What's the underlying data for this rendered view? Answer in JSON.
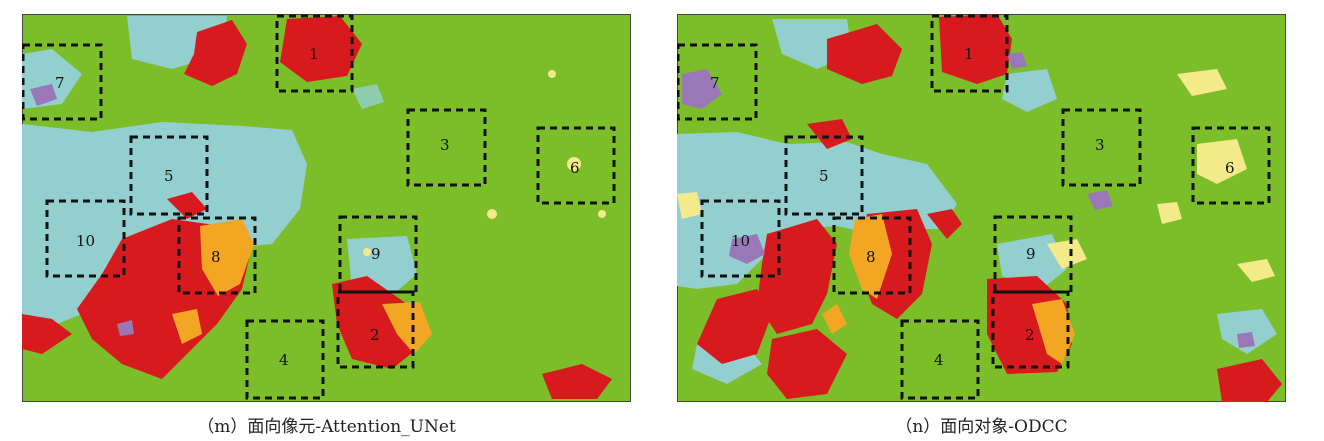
{
  "colors": {
    "green": "#7cbd2a",
    "cyan": "#94cfcf",
    "red": "#d61a1d",
    "orange": "#f2a624",
    "yellow": "#f5ea8a",
    "purple": "#9a78b8",
    "box": "#111111"
  },
  "panels": [
    {
      "caption": "（m）面向像元-Attention_UNet",
      "regions": [
        "1",
        "2",
        "3",
        "4",
        "5",
        "6",
        "7",
        "8",
        "9",
        "10"
      ]
    },
    {
      "caption": "（n）面向对象-ODCC",
      "regions": [
        "1",
        "2",
        "3",
        "4",
        "5",
        "6",
        "7",
        "8",
        "9",
        "10"
      ]
    }
  ]
}
